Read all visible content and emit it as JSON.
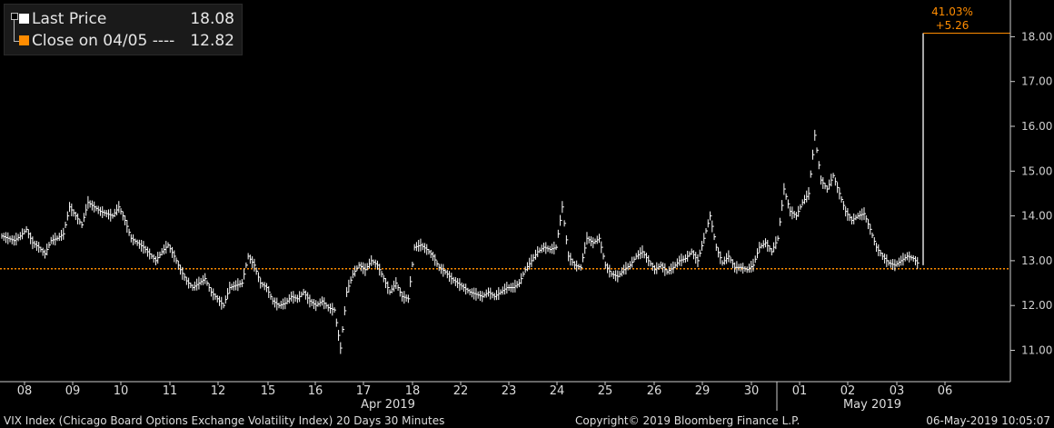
{
  "legend": {
    "last_price_label": "Last Price",
    "last_price_value": "18.08",
    "close_label": "Close on 04/05 ----",
    "close_value": "12.82",
    "last_color": "#ffffff",
    "close_color": "#ff8c00"
  },
  "annotation": {
    "pct": "41.03%",
    "change": "+5.26"
  },
  "footer": {
    "left": "VIX Index (Chicago Board Options Exchange Volatility Index) 20 Days 30 Minutes",
    "center": "Copyright© 2019 Bloomberg Finance L.P.",
    "right": "06-May-2019 10:05:07"
  },
  "chart_data": {
    "type": "line",
    "ylim": [
      10.5,
      18.5
    ],
    "y_ticks": [
      "11.00",
      "12.00",
      "13.00",
      "14.00",
      "15.00",
      "16.00",
      "17.00",
      "18.00"
    ],
    "x_ticks": [
      "08",
      "09",
      "10",
      "11",
      "12",
      "15",
      "16",
      "17",
      "18",
      "22",
      "23",
      "24",
      "25",
      "26",
      "29",
      "30",
      "01",
      "02",
      "03",
      "06"
    ],
    "month_labels": [
      "Apr 2019",
      "May 2019"
    ],
    "reference_line": {
      "name": "Close on 04/05",
      "value": 12.82
    },
    "last_value": 18.08,
    "series": [
      {
        "values": [
          13.55,
          13.5,
          13.45,
          13.55,
          13.7,
          13.4,
          13.3,
          13.15,
          13.45,
          13.5,
          13.6,
          14.2,
          14.0,
          13.8,
          14.3,
          14.2,
          14.1,
          14.05,
          14.0,
          14.2,
          13.9,
          13.5,
          13.4,
          13.3,
          13.15,
          13.0,
          13.2,
          13.35,
          13.1,
          12.8,
          12.55,
          12.4,
          12.5,
          12.6,
          12.3,
          12.15,
          12.0,
          12.4,
          12.45,
          12.5,
          13.1,
          12.9,
          12.5,
          12.4,
          12.1,
          12.0,
          12.05,
          12.2,
          12.15,
          12.3,
          12.1,
          12.0,
          12.1,
          11.95,
          11.9,
          11.05,
          12.3,
          12.7,
          12.9,
          12.8,
          13.0,
          12.9,
          12.6,
          12.3,
          12.5,
          12.2,
          12.15,
          13.3,
          13.35,
          13.25,
          13.1,
          12.85,
          12.75,
          12.6,
          12.5,
          12.4,
          12.3,
          12.25,
          12.2,
          12.3,
          12.2,
          12.3,
          12.4,
          12.4,
          12.5,
          12.8,
          13.0,
          13.2,
          13.3,
          13.25,
          13.3,
          14.2,
          13.1,
          12.9,
          12.85,
          13.5,
          13.4,
          13.5,
          12.9,
          12.7,
          12.65,
          12.8,
          12.9,
          13.1,
          13.2,
          13.0,
          12.8,
          12.9,
          12.75,
          12.85,
          13.0,
          13.05,
          13.2,
          13.0,
          13.5,
          14.0,
          13.3,
          12.95,
          13.1,
          12.85,
          12.85,
          12.8,
          12.9,
          13.3,
          13.4,
          13.2,
          13.5,
          14.6,
          14.1,
          14.0,
          14.3,
          14.5,
          15.8,
          14.8,
          14.6,
          14.9,
          14.5,
          14.1,
          13.9,
          14.0,
          14.05,
          13.7,
          13.3,
          13.1,
          12.95,
          12.9,
          13.0,
          13.1,
          13.05,
          12.9,
          18.08
        ]
      }
    ]
  }
}
